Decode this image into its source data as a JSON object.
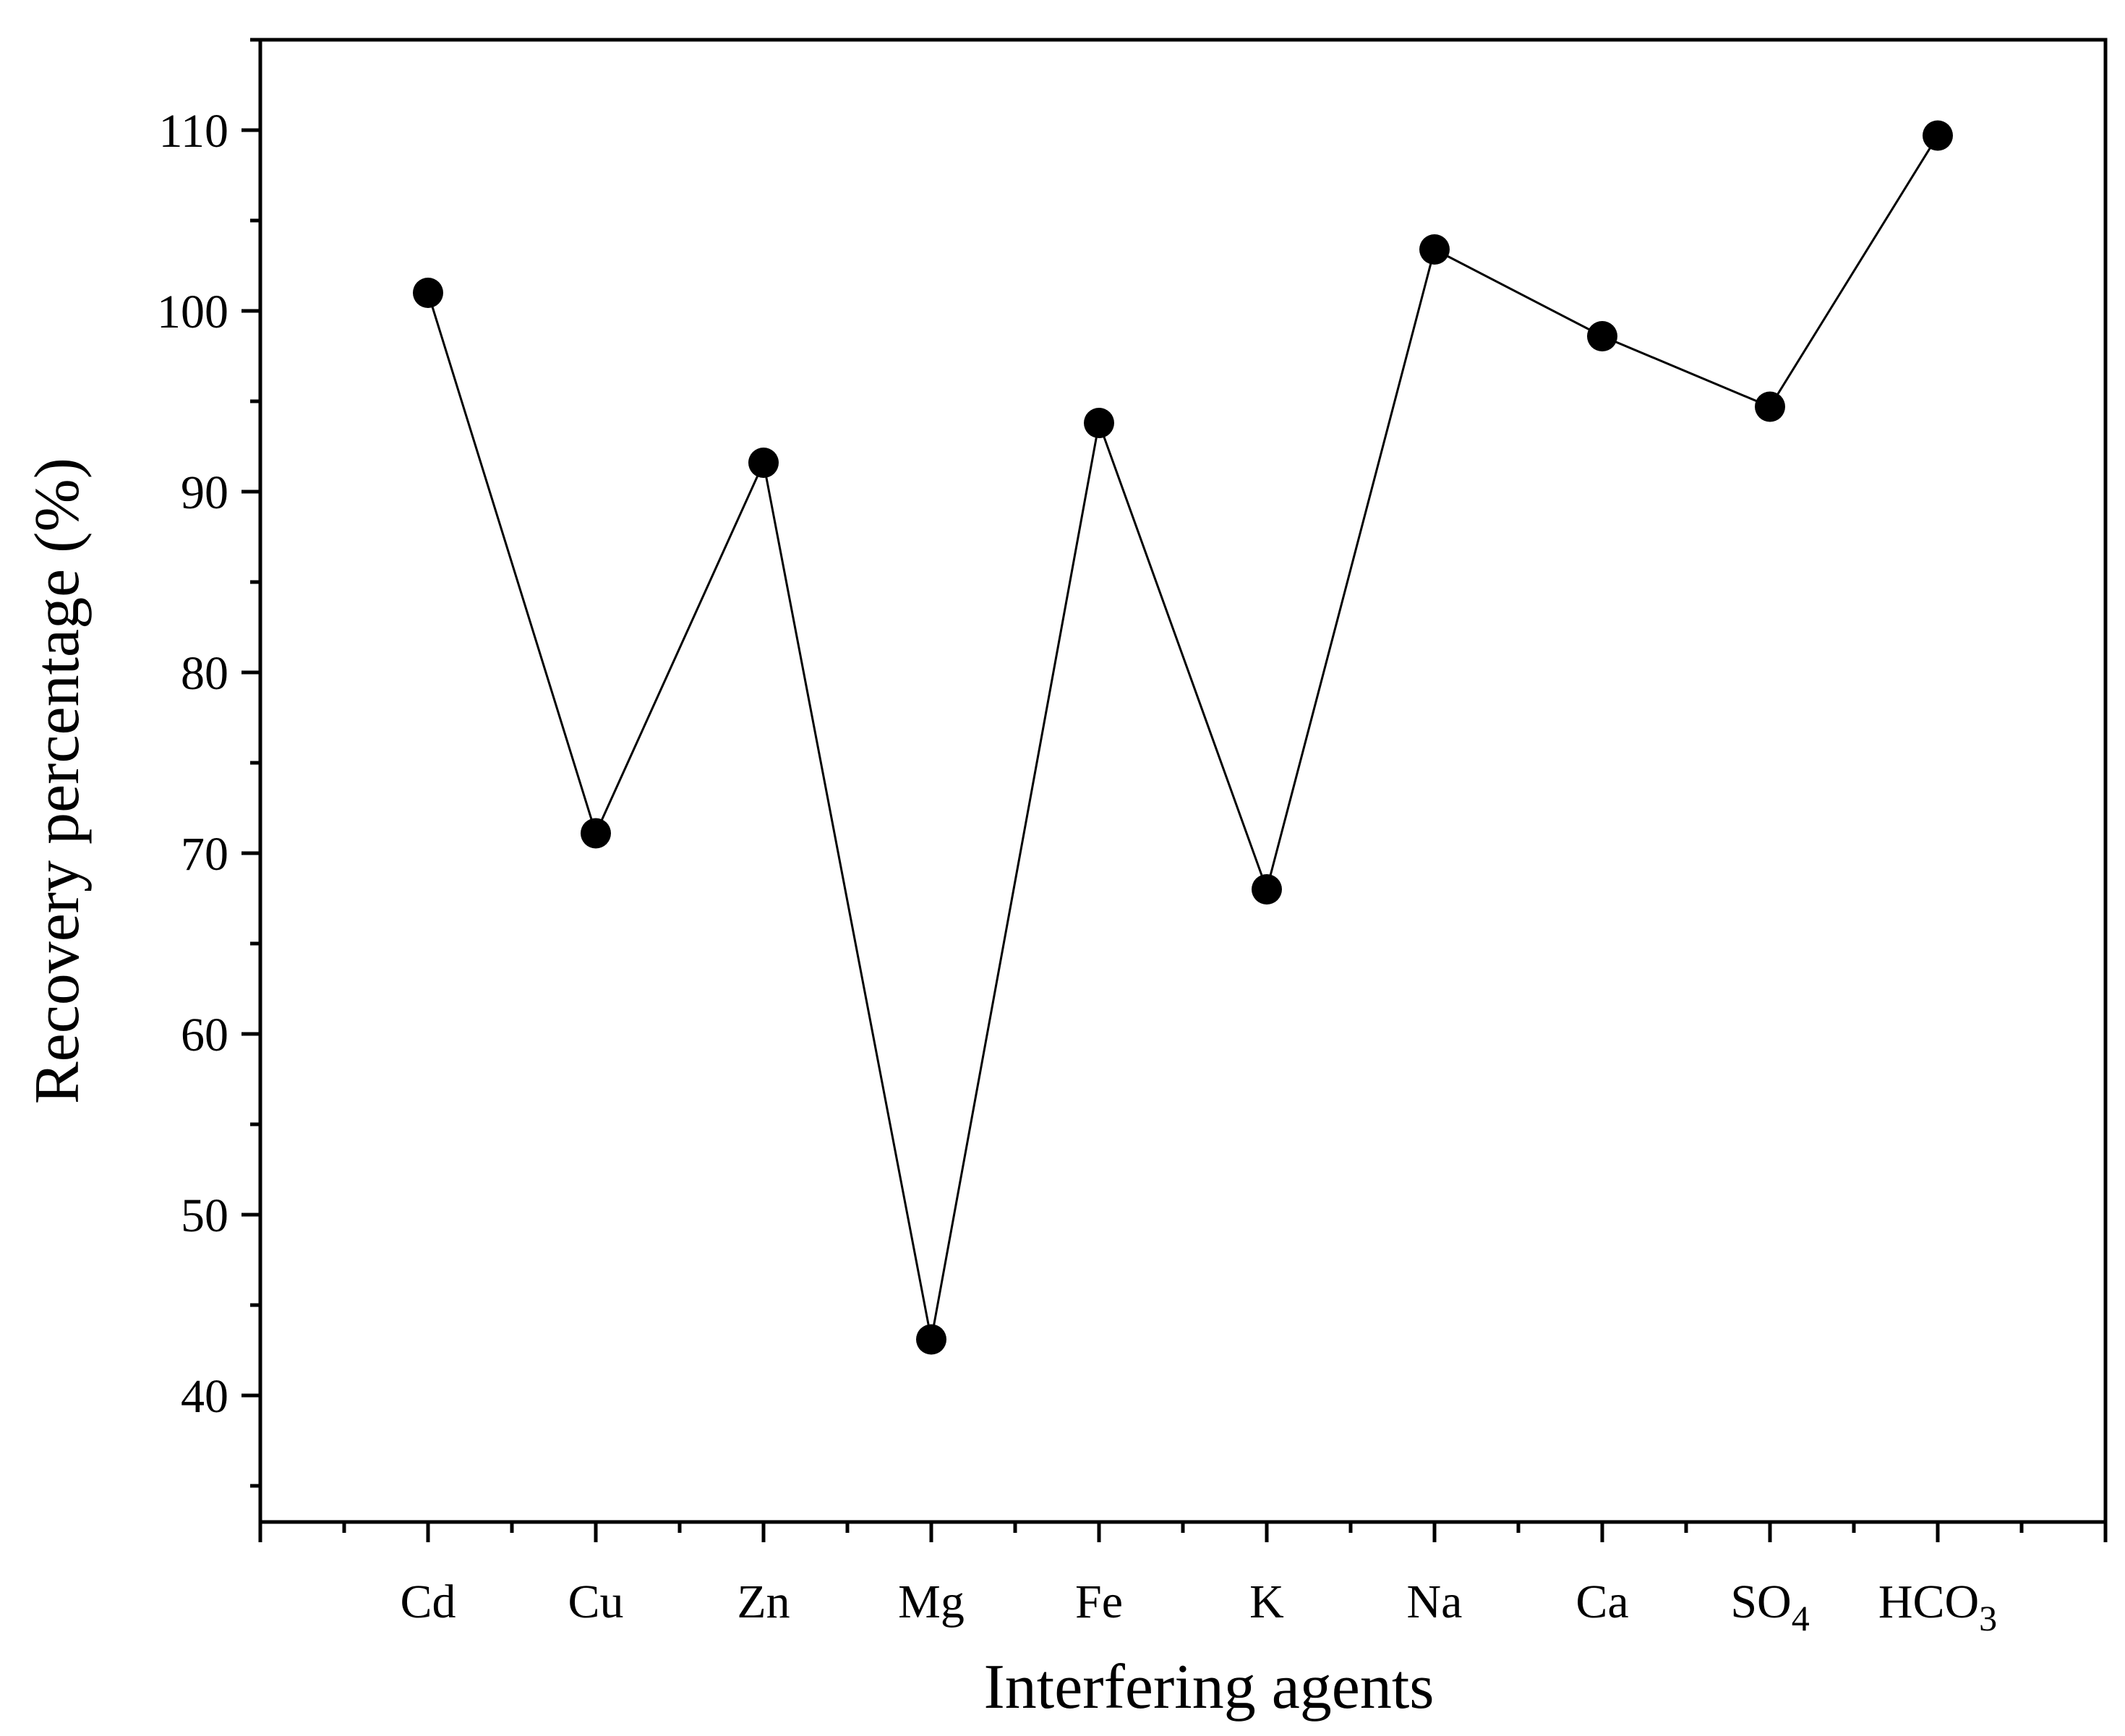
{
  "chart_data": {
    "type": "line",
    "title": "",
    "xlabel": "Interfering agents",
    "ylabel": "Recovery percentage (%)",
    "ylim": [
      33,
      115
    ],
    "yticks": [
      40,
      50,
      60,
      70,
      80,
      90,
      100,
      110
    ],
    "ytick_labels": [
      "40",
      "50",
      "60",
      "70",
      "80",
      "90",
      "100",
      "110"
    ],
    "categories": [
      "Cd",
      "Cu",
      "Zn",
      "Mg",
      "Fe",
      "K",
      "Na",
      "Ca",
      "SO4",
      "HCO3"
    ],
    "category_labels": [
      {
        "base": "Cd",
        "sub": ""
      },
      {
        "base": "Cu",
        "sub": ""
      },
      {
        "base": "Zn",
        "sub": ""
      },
      {
        "base": "Mg",
        "sub": ""
      },
      {
        "base": "Fe",
        "sub": ""
      },
      {
        "base": "K",
        "sub": ""
      },
      {
        "base": "Na",
        "sub": ""
      },
      {
        "base": "Ca",
        "sub": ""
      },
      {
        "base": "SO",
        "sub": "4"
      },
      {
        "base": "HCO",
        "sub": "3"
      }
    ],
    "series": [
      {
        "name": "Recovery percentage",
        "values": [
          101.0,
          71.1,
          91.6,
          43.1,
          93.8,
          68.0,
          103.4,
          98.6,
          94.7,
          109.7
        ],
        "color": "#000000"
      }
    ],
    "grid": false,
    "legend": "none"
  }
}
